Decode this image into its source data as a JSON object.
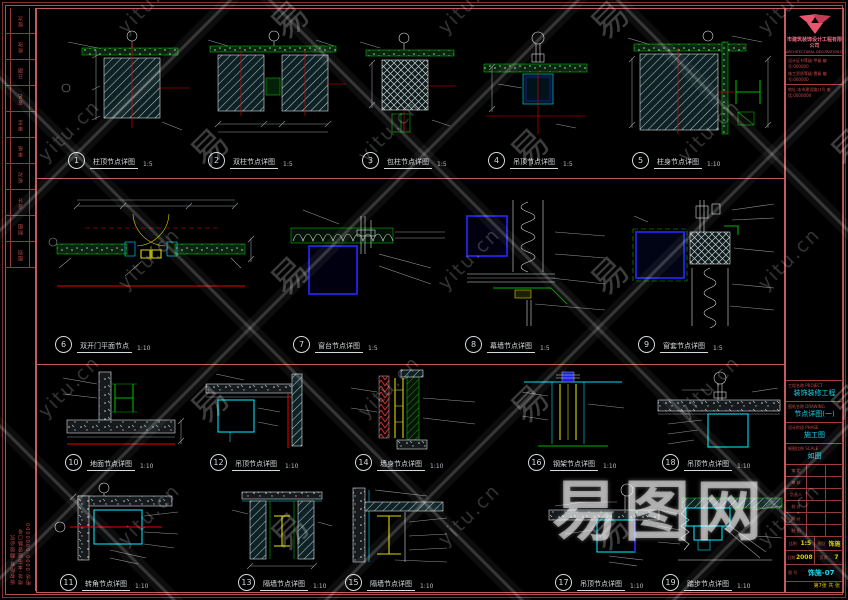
{
  "watermark": {
    "tile_text_a": "yitu.cn",
    "tile_text_b": "易",
    "big_text": "易图网"
  },
  "left_strip": {
    "rows": [
      "版次",
      "修改",
      "日期",
      "签名",
      "审定",
      "审核",
      "校对",
      "设计",
      "制图",
      "图别"
    ],
    "footer_lines": [
      "版权所有·翻版必究",
      "地址:本市建设路口号",
      "电话:0000-0000000"
    ]
  },
  "title_block": {
    "company_cn": "市建筑装饰设计工程有限公司",
    "company_en": "ARCHITECTURAL DECORATION DESIGN ENGINEERING CO.,LTD",
    "cert_lines": [
      "设计证书等级:甲级 编号:000000",
      "施工资质等级:壹级 编号:000000"
    ],
    "addr_line": "地址:本市建设路口号  电话:0000000",
    "fields": [
      {
        "label": "工程名称 PROJECT",
        "value": "装饰装修工程"
      },
      {
        "label": "图纸名称 DRAWING",
        "value": "节点详图(一)"
      },
      {
        "label": "设计阶段 PHASE",
        "value": "施工图"
      },
      {
        "label": "制图比例 SCALE",
        "value": "如图"
      }
    ],
    "sign_rows": [
      "审 定",
      "审 核",
      "负责人",
      "校 对",
      "设 计",
      "制 图"
    ],
    "yellow_cells": [
      {
        "label": "比例",
        "value": "1:5"
      },
      {
        "label": "图别",
        "value": "饰施"
      },
      {
        "label": "日期",
        "value": "2008"
      },
      {
        "label": "页次",
        "value": "7"
      }
    ],
    "number_label": "图 号",
    "number_value": "饰施-07",
    "page_note": "第7张 共 张"
  },
  "details": [
    {
      "num": "1",
      "title": "柱顶节点详图",
      "scale": "1:5"
    },
    {
      "num": "2",
      "title": "双柱节点详图",
      "scale": "1:5"
    },
    {
      "num": "3",
      "title": "包柱节点详图",
      "scale": "1:5"
    },
    {
      "num": "4",
      "title": "吊顶节点详图",
      "scale": "1:5"
    },
    {
      "num": "5",
      "title": "柱身节点详图",
      "scale": "1:10"
    },
    {
      "num": "6",
      "title": "双开门平面节点",
      "scale": "1:10"
    },
    {
      "num": "7",
      "title": "窗台节点详图",
      "scale": "1:5"
    },
    {
      "num": "8",
      "title": "幕墙节点详图",
      "scale": "1:5"
    },
    {
      "num": "9",
      "title": "窗套节点详图",
      "scale": "1:5"
    },
    {
      "num": "10",
      "title": "地面节点详图",
      "scale": "1:10"
    },
    {
      "num": "11",
      "title": "转角节点详图",
      "scale": "1:10"
    },
    {
      "num": "12",
      "title": "吊顶节点详图",
      "scale": "1:10"
    },
    {
      "num": "13",
      "title": "隔墙节点详图",
      "scale": "1:10"
    },
    {
      "num": "14",
      "title": "墙身节点详图",
      "scale": "1:10"
    },
    {
      "num": "15",
      "title": "隔墙节点详图",
      "scale": "1:10"
    },
    {
      "num": "16",
      "title": "钢架节点详图",
      "scale": "1:10"
    },
    {
      "num": "17",
      "title": "吊顶节点详图",
      "scale": "1:10"
    },
    {
      "num": "18",
      "title": "吊顶节点详图",
      "scale": "1:10"
    },
    {
      "num": "19",
      "title": "踏步节点详图",
      "scale": "1:10"
    }
  ]
}
